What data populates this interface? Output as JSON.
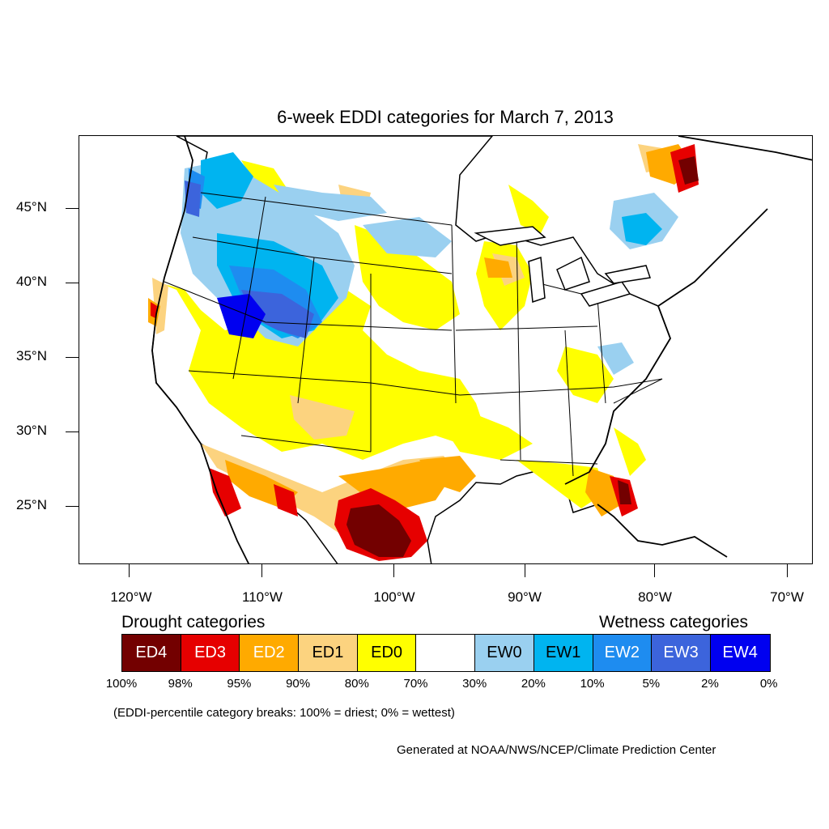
{
  "title": "6-week EDDI categories for March 7, 2013",
  "lat_labels": [
    "45°N",
    "40°N",
    "35°N",
    "30°N",
    "25°N"
  ],
  "lon_labels": [
    "120°W",
    "110°W",
    "100°W",
    "90°W",
    "80°W",
    "70°W"
  ],
  "legend": {
    "drought_heading": "Drought categories",
    "wetness_heading": "Wetness categories",
    "categories": [
      {
        "label": "ED4",
        "color": "#730000",
        "text_color": "#ffffff"
      },
      {
        "label": "ED3",
        "color": "#e60000",
        "text_color": "#ffffff"
      },
      {
        "label": "ED2",
        "color": "#ffaa00",
        "text_color": "#ffffff"
      },
      {
        "label": "ED1",
        "color": "#fcd37f",
        "text_color": "#000000"
      },
      {
        "label": "ED0",
        "color": "#ffff00",
        "text_color": "#000000"
      },
      {
        "label": "",
        "color": "#ffffff",
        "text_color": "#000000"
      },
      {
        "label": "EW0",
        "color": "#9ad0f0",
        "text_color": "#000000"
      },
      {
        "label": "EW1",
        "color": "#00b4f0",
        "text_color": "#000000"
      },
      {
        "label": "EW2",
        "color": "#1e8cf0",
        "text_color": "#ffffff"
      },
      {
        "label": "EW3",
        "color": "#3c64dc",
        "text_color": "#ffffff"
      },
      {
        "label": "EW4",
        "color": "#0000f0",
        "text_color": "#ffffff"
      }
    ],
    "percentiles": [
      "100%",
      "98%",
      "95%",
      "90%",
      "80%",
      "70%",
      "30%",
      "20%",
      "10%",
      "5%",
      "2%",
      "0%"
    ]
  },
  "note": "(EDDI-percentile category breaks: 100% = driest; 0% = wettest)",
  "credit": "Generated at NOAA/NWS/NCEP/Climate Prediction Center"
}
